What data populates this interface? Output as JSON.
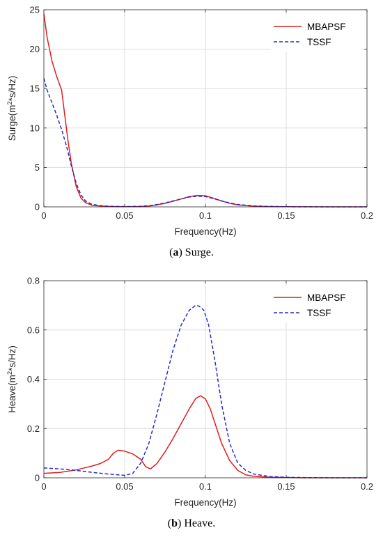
{
  "chart_data": [
    {
      "type": "line",
      "caption_letter": "a",
      "caption_text": " Surge.",
      "xlabel": "Frequency(Hz)",
      "ylabel_prefix": "Surge(m",
      "ylabel_sup": "2",
      "ylabel_suffix": "*s/Hz)",
      "xlim": [
        0,
        0.2
      ],
      "ylim": [
        0,
        25
      ],
      "xticks": [
        0,
        0.05,
        0.1,
        0.15,
        0.2
      ],
      "xtick_labels": [
        "0",
        "0.05",
        "0.1",
        "0.15",
        "0.2"
      ],
      "yticks": [
        0,
        5,
        10,
        15,
        20,
        25
      ],
      "ytick_labels": [
        "0",
        "5",
        "10",
        "15",
        "20",
        "25"
      ],
      "grid": true,
      "legend_position": "top-right",
      "series": [
        {
          "name": "MBAPSF",
          "color": "#e41a1c",
          "dash": "solid",
          "x": [
            0,
            0.002,
            0.005,
            0.008,
            0.011,
            0.013,
            0.015,
            0.017,
            0.02,
            0.023,
            0.026,
            0.03,
            0.035,
            0.04,
            0.045,
            0.05,
            0.055,
            0.06,
            0.065,
            0.07,
            0.075,
            0.08,
            0.085,
            0.09,
            0.095,
            0.1,
            0.105,
            0.11,
            0.115,
            0.12,
            0.13,
            0.14,
            0.15,
            0.16,
            0.18,
            0.2
          ],
          "y": [
            24.5,
            21.5,
            18.5,
            16.5,
            14.8,
            11.5,
            8.3,
            5.5,
            2.6,
            1.1,
            0.5,
            0.2,
            0.1,
            0.05,
            0.03,
            0.02,
            0.02,
            0.04,
            0.1,
            0.25,
            0.45,
            0.72,
            1.0,
            1.3,
            1.45,
            1.4,
            1.1,
            0.75,
            0.45,
            0.25,
            0.08,
            0.03,
            0.02,
            0.01,
            0.0,
            0.0
          ]
        },
        {
          "name": "TSSF",
          "color": "#1f2bd0",
          "dash": "dashed",
          "x": [
            0,
            0.002,
            0.005,
            0.008,
            0.011,
            0.014,
            0.017,
            0.02,
            0.023,
            0.026,
            0.03,
            0.035,
            0.04,
            0.045,
            0.05,
            0.055,
            0.06,
            0.065,
            0.07,
            0.075,
            0.08,
            0.085,
            0.09,
            0.095,
            0.1,
            0.105,
            0.11,
            0.115,
            0.12,
            0.13,
            0.14,
            0.15,
            0.16,
            0.18,
            0.2
          ],
          "y": [
            16.3,
            14.8,
            13.2,
            11.6,
            9.8,
            7.7,
            5.2,
            3.0,
            1.5,
            0.7,
            0.3,
            0.15,
            0.08,
            0.05,
            0.04,
            0.05,
            0.08,
            0.15,
            0.3,
            0.5,
            0.75,
            1.0,
            1.25,
            1.35,
            1.3,
            1.05,
            0.75,
            0.5,
            0.3,
            0.12,
            0.05,
            0.02,
            0.01,
            0.0,
            0.0
          ]
        }
      ]
    },
    {
      "type": "line",
      "caption_letter": "b",
      "caption_text": " Heave.",
      "xlabel": "Frequency(Hz)",
      "ylabel_prefix": "Heave(m",
      "ylabel_sup": "2",
      "ylabel_suffix": "*s/Hz)",
      "xlim": [
        0,
        0.2
      ],
      "ylim": [
        0,
        0.8
      ],
      "xticks": [
        0,
        0.05,
        0.1,
        0.15,
        0.2
      ],
      "xtick_labels": [
        "0",
        "0.05",
        "0.1",
        "0.15",
        "0.2"
      ],
      "yticks": [
        0,
        0.2,
        0.4,
        0.6,
        0.8
      ],
      "ytick_labels": [
        "0",
        "0.2",
        "0.4",
        "0.6",
        "0.8"
      ],
      "grid": true,
      "legend_position": "top-right",
      "series": [
        {
          "name": "MBAPSF",
          "color": "#e41a1c",
          "dash": "solid",
          "x": [
            0,
            0.01,
            0.02,
            0.03,
            0.035,
            0.04,
            0.043,
            0.046,
            0.05,
            0.055,
            0.06,
            0.063,
            0.066,
            0.07,
            0.075,
            0.08,
            0.085,
            0.09,
            0.094,
            0.097,
            0.1,
            0.103,
            0.107,
            0.11,
            0.115,
            0.12,
            0.125,
            0.13,
            0.14,
            0.15,
            0.16,
            0.18,
            0.2
          ],
          "y": [
            0.018,
            0.022,
            0.032,
            0.048,
            0.058,
            0.075,
            0.1,
            0.112,
            0.108,
            0.097,
            0.075,
            0.045,
            0.036,
            0.058,
            0.105,
            0.16,
            0.22,
            0.28,
            0.322,
            0.333,
            0.32,
            0.28,
            0.2,
            0.14,
            0.07,
            0.03,
            0.012,
            0.006,
            0.002,
            0.001,
            0.0,
            0.0,
            0.0
          ]
        },
        {
          "name": "TSSF",
          "color": "#1f2bd0",
          "dash": "dashed",
          "x": [
            0,
            0.01,
            0.02,
            0.03,
            0.04,
            0.05,
            0.055,
            0.06,
            0.065,
            0.07,
            0.075,
            0.08,
            0.085,
            0.09,
            0.094,
            0.096,
            0.099,
            0.102,
            0.106,
            0.11,
            0.115,
            0.12,
            0.125,
            0.13,
            0.14,
            0.15,
            0.16,
            0.18,
            0.2
          ],
          "y": [
            0.04,
            0.036,
            0.03,
            0.022,
            0.015,
            0.01,
            0.018,
            0.06,
            0.14,
            0.26,
            0.39,
            0.52,
            0.62,
            0.68,
            0.7,
            0.697,
            0.68,
            0.62,
            0.47,
            0.3,
            0.14,
            0.06,
            0.03,
            0.015,
            0.005,
            0.002,
            0.001,
            0.0,
            0.0
          ]
        }
      ]
    }
  ]
}
